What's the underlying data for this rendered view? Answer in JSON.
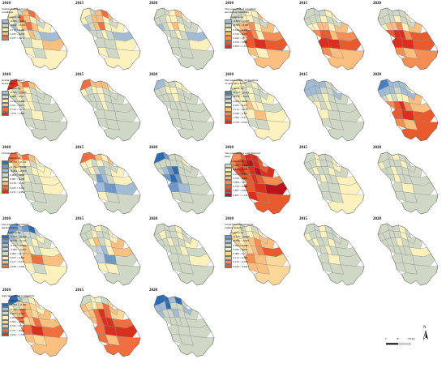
{
  "panels": [
    {
      "year": "2010",
      "title": "Transportation and road conditions",
      "central": "Central city",
      "legend": [
        "-0.045 ~ -0.011",
        "-0.010 ~ 0.116",
        "0.117 ~ 0.182",
        "0.183 ~ 0.256",
        "0.257 ~ 0.432"
      ],
      "colors": [
        "#a3bcd5",
        "#cfd7c5",
        "#fdf1bd",
        "#fbbf80",
        "#f16e3f"
      ],
      "pattern": [
        2,
        1,
        3,
        4,
        3,
        2,
        1,
        4,
        3,
        2,
        1,
        0,
        2,
        3,
        4,
        3,
        2,
        1,
        2,
        3,
        1,
        0,
        1,
        2,
        3,
        2,
        1,
        2
      ]
    },
    {
      "year": "2015",
      "title": "",
      "central": "",
      "legend": [],
      "colors": [
        "#a3bcd5",
        "#cfd7c5",
        "#fdf1bd",
        "#fbbf80",
        "#f16e3f"
      ],
      "pattern": [
        2,
        1,
        3,
        4,
        3,
        2,
        1,
        3,
        3,
        2,
        1,
        0,
        1,
        3,
        4,
        2,
        2,
        1,
        1,
        2,
        1,
        0,
        1,
        1,
        2,
        2,
        1,
        2
      ]
    },
    {
      "year": "2020",
      "title": "",
      "central": "",
      "legend": [],
      "colors": [
        "#a3bcd5",
        "#cfd7c5",
        "#fdf1bd",
        "#fbbf80",
        "#f16e3f"
      ],
      "pattern": [
        1,
        1,
        2,
        3,
        2,
        1,
        1,
        2,
        2,
        1,
        1,
        0,
        1,
        2,
        3,
        2,
        1,
        1,
        1,
        2,
        1,
        0,
        1,
        1,
        2,
        1,
        1,
        1
      ]
    },
    {
      "year": "2010",
      "title": "The proportion of secondary and tertiary industries",
      "central": "Central city",
      "legend": [
        "-0.024 ~ -0.003",
        "-0.003 ~ 0.185",
        "0.186 ~ 0.318",
        "0.319 ~ 0.455",
        "0.456 ~ 0.575",
        "0.576 ~ 0.852",
        "0.853 ~ 1.315"
      ],
      "colors": [
        "#a3bcd5",
        "#cfd7c5",
        "#fdf1bd",
        "#fbbf80",
        "#f58e55",
        "#ea5a2f",
        "#d92f1f"
      ],
      "pattern": [
        1,
        1,
        2,
        2,
        3,
        1,
        1,
        2,
        2,
        1,
        1,
        2,
        3,
        3,
        4,
        2,
        3,
        4,
        5,
        4,
        2,
        4,
        5,
        6,
        5,
        3,
        2,
        3
      ]
    },
    {
      "year": "2015",
      "title": "",
      "central": "",
      "legend": [],
      "colors": [
        "#a3bcd5",
        "#cfd7c5",
        "#fdf1bd",
        "#fbbf80",
        "#f58e55",
        "#ea5a2f",
        "#d92f1f"
      ],
      "pattern": [
        1,
        1,
        1,
        2,
        2,
        1,
        1,
        1,
        2,
        1,
        1,
        2,
        2,
        3,
        3,
        2,
        3,
        4,
        5,
        5,
        3,
        4,
        6,
        6,
        5,
        4,
        3,
        3
      ]
    },
    {
      "year": "2020",
      "title": "",
      "central": "",
      "legend": [],
      "colors": [
        "#a3bcd5",
        "#cfd7c5",
        "#fdf1bd",
        "#fbbf80",
        "#f58e55",
        "#ea5a2f",
        "#d92f1f"
      ],
      "pattern": [
        1,
        1,
        1,
        1,
        2,
        1,
        1,
        1,
        2,
        1,
        1,
        2,
        3,
        3,
        4,
        2,
        3,
        5,
        6,
        6,
        4,
        5,
        6,
        6,
        5,
        4,
        3,
        4
      ]
    },
    {
      "year": "2010",
      "title": "Arable land resource endowment",
      "central": "Central city",
      "legend": [
        "-0.535 ~ -0.009",
        "0.000 ~ 0.211",
        "0.212 ~ 0.320",
        "0.321 ~ 0.517",
        "0.519 ~ 1.278",
        "1.279 ~ 2.426"
      ],
      "colors": [
        "#a3bcd5",
        "#cfd7c5",
        "#fdf1bd",
        "#fbbf80",
        "#f16e3f",
        "#d92f1f"
      ],
      "pattern": [
        5,
        3,
        4,
        3,
        2,
        2,
        1,
        3,
        2,
        1,
        1,
        1,
        2,
        1,
        2,
        1,
        1,
        1,
        2,
        2,
        1,
        1,
        1,
        2,
        1,
        1,
        1,
        1
      ]
    },
    {
      "year": "2015",
      "title": "",
      "central": "",
      "legend": [],
      "colors": [
        "#a3bcd5",
        "#cfd7c5",
        "#fdf1bd",
        "#fbbf80",
        "#f16e3f",
        "#d92f1f"
      ],
      "pattern": [
        4,
        3,
        3,
        3,
        2,
        2,
        1,
        2,
        2,
        1,
        1,
        1,
        1,
        1,
        2,
        1,
        1,
        1,
        1,
        2,
        1,
        1,
        1,
        1,
        1,
        1,
        1,
        1
      ]
    },
    {
      "year": "2020",
      "title": "",
      "central": "",
      "legend": [],
      "colors": [
        "#a3bcd5",
        "#cfd7c5",
        "#fdf1bd",
        "#fbbf80",
        "#f16e3f",
        "#d92f1f"
      ],
      "pattern": [
        0,
        1,
        1,
        2,
        2,
        1,
        1,
        2,
        2,
        1,
        1,
        1,
        1,
        1,
        2,
        1,
        1,
        1,
        1,
        1,
        1,
        1,
        1,
        1,
        1,
        1,
        1,
        1
      ]
    },
    {
      "year": "2010",
      "title": "The non-farming development of rural labor force",
      "central": "Central city",
      "legend": [
        "-0.124 ~ -0.121",
        "-0.120 ~ -0.001",
        "0.000 ~ 0.078",
        "0.079 ~ 0.171",
        "0.172 ~ 0.247",
        "0.248 ~ 0.301",
        "0.302 ~ 0.377",
        "0.378 ~ 0.563"
      ],
      "colors": [
        "#4a7fbf",
        "#a3bcd5",
        "#cfd7c5",
        "#fdf1bd",
        "#fbbf80",
        "#f58e55",
        "#ea5a2f",
        "#d92f1f"
      ],
      "pattern": [
        3,
        3,
        2,
        3,
        2,
        2,
        3,
        2,
        3,
        2,
        2,
        3,
        3,
        2,
        3,
        2,
        3,
        3,
        4,
        3,
        3,
        2,
        3,
        4,
        3,
        2,
        2,
        3
      ]
    },
    {
      "year": "2015",
      "title": "",
      "central": "",
      "legend": [],
      "colors": [
        "#4a7fbf",
        "#a3bcd5",
        "#cfd7c5",
        "#fdf1bd",
        "#fbbf80",
        "#f58e55",
        "#ea5a2f",
        "#d92f1f"
      ],
      "pattern": [
        1,
        1,
        1,
        2,
        2,
        1,
        1,
        1,
        2,
        2,
        1,
        2,
        2,
        2,
        3,
        2,
        2,
        3,
        2,
        3,
        2,
        2,
        3,
        2,
        2,
        2,
        2,
        2
      ]
    },
    {
      "year": "2020",
      "title": "",
      "central": "",
      "legend": [],
      "colors": [
        "#4a7fbf",
        "#a3bcd5",
        "#cfd7c5",
        "#fdf1bd",
        "#fbbf80",
        "#f58e55",
        "#ea5a2f",
        "#d92f1f"
      ],
      "pattern": [
        0,
        1,
        1,
        1,
        2,
        1,
        1,
        1,
        2,
        1,
        1,
        2,
        3,
        2,
        3,
        3,
        4,
        5,
        6,
        7,
        5,
        4,
        6,
        7,
        6,
        5,
        4,
        6
      ]
    },
    {
      "year": "2010",
      "title": "Urbanization",
      "central": "Central city",
      "legend": [
        "-0.758 ~ -0.132",
        "-0.131 ~ -0.094",
        "-0.093 ~ -0.001",
        "0.000 ~ 0.066",
        "0.067 ~ 0.138",
        "0.139 ~ 0.182",
        "0.183 ~ 0.210",
        "0.211 ~ 0.484"
      ],
      "colors": [
        "#2c6bb0",
        "#6d98c8",
        "#a3bcd5",
        "#cfd7c5",
        "#fdf1bd",
        "#fbbf80",
        "#f16e3f",
        "#d92f1f"
      ],
      "pattern": [
        6,
        5,
        6,
        5,
        4,
        4,
        5,
        4,
        4,
        3,
        4,
        3,
        4,
        3,
        3,
        4,
        4,
        3,
        4,
        3,
        3,
        4,
        3,
        3,
        4,
        3,
        3,
        3
      ]
    },
    {
      "year": "2015",
      "title": "",
      "central": "",
      "legend": [],
      "colors": [
        "#2c6bb0",
        "#6d98c8",
        "#a3bcd5",
        "#cfd7c5",
        "#fdf1bd",
        "#fbbf80",
        "#f16e3f",
        "#d92f1f"
      ],
      "pattern": [
        6,
        6,
        5,
        4,
        5,
        4,
        4,
        3,
        4,
        3,
        3,
        3,
        4,
        3,
        2,
        3,
        4,
        3,
        1,
        2,
        3,
        4,
        2,
        1,
        2,
        4,
        3,
        3
      ]
    },
    {
      "year": "2020",
      "title": "",
      "central": "",
      "legend": [],
      "colors": [
        "#2c6bb0",
        "#6d98c8",
        "#a3bcd5",
        "#cfd7c5",
        "#fdf1bd",
        "#fbbf80",
        "#f16e3f",
        "#d92f1f"
      ],
      "pattern": [
        0,
        1,
        3,
        3,
        4,
        3,
        3,
        3,
        3,
        3,
        3,
        3,
        2,
        1,
        0,
        3,
        3,
        1,
        0,
        1,
        3,
        3,
        1,
        2,
        3,
        3,
        3,
        3
      ]
    },
    {
      "year": "2010",
      "title": "The government's total financial input",
      "central": "Central city",
      "legend": [
        "0.000 ~ 0.143",
        "0.144 ~ 0.253",
        "0.254 ~ 0.322",
        "0.323 ~ 0.403",
        "0.404 ~ 0.518",
        "0.519 ~ 0.666",
        "0.667 ~ 0.926",
        "0.927 ~ 1.134"
      ],
      "colors": [
        "#cfd7c5",
        "#fdf1bd",
        "#fbd89a",
        "#fbbf80",
        "#f58e55",
        "#ea5a2f",
        "#d92f1f",
        "#b8141a"
      ],
      "pattern": [
        4,
        5,
        6,
        6,
        5,
        4,
        5,
        6,
        7,
        6,
        5,
        5,
        6,
        5,
        6,
        7,
        6,
        5,
        5,
        6,
        5,
        4,
        5,
        6,
        7,
        6,
        5,
        5
      ]
    },
    {
      "year": "2015",
      "title": "",
      "central": "",
      "legend": [],
      "colors": [
        "#cfd7c5",
        "#fdf1bd",
        "#fbd89a",
        "#fbbf80",
        "#f58e55",
        "#ea5a2f",
        "#d92f1f",
        "#b8141a"
      ],
      "pattern": [
        0,
        1,
        0,
        0,
        1,
        0,
        0,
        1,
        0,
        0,
        1,
        0,
        1,
        0,
        0,
        1,
        0,
        0,
        1,
        0,
        0,
        1,
        0,
        0,
        1,
        0,
        0,
        1
      ]
    },
    {
      "year": "2020",
      "title": "",
      "central": "",
      "legend": [],
      "colors": [
        "#cfd7c5",
        "#fdf1bd",
        "#fbd89a",
        "#fbbf80",
        "#f58e55",
        "#ea5a2f",
        "#d92f1f",
        "#b8141a"
      ],
      "pattern": [
        0,
        0,
        1,
        0,
        0,
        1,
        0,
        0,
        0,
        1,
        0,
        0,
        0,
        1,
        0,
        0,
        0,
        0,
        1,
        0,
        0,
        0,
        0,
        1,
        0,
        0,
        0,
        0
      ]
    },
    {
      "year": "2010",
      "title": "The level of agricultural mechanization",
      "central": "Central city",
      "legend": [
        "-0.242 ~ -0.199",
        "-0.198 ~ -0.132",
        "-0.131 ~ -0.066",
        "-0.065 ~ -0.001",
        "0.000 ~ 0.074",
        "0.075 ~ 0.156",
        "0.157 ~ 0.237",
        "0.238 ~ 0.424"
      ],
      "colors": [
        "#2c6bb0",
        "#6d98c8",
        "#a3bcd5",
        "#c2d1dc",
        "#cfd7c5",
        "#fdf1bd",
        "#fbbf80",
        "#f16e3f"
      ],
      "pattern": [
        1,
        2,
        1,
        0,
        3,
        2,
        4,
        3,
        4,
        4,
        5,
        4,
        4,
        5,
        4,
        5,
        4,
        5,
        6,
        5,
        4,
        5,
        6,
        7,
        6,
        5,
        4,
        5
      ]
    },
    {
      "year": "2015",
      "title": "",
      "central": "",
      "legend": [],
      "colors": [
        "#2c6bb0",
        "#6d98c8",
        "#a3bcd5",
        "#c2d1dc",
        "#cfd7c5",
        "#fdf1bd",
        "#fbbf80",
        "#f16e3f"
      ],
      "pattern": [
        4,
        4,
        5,
        4,
        5,
        4,
        4,
        5,
        4,
        4,
        5,
        4,
        5,
        6,
        4,
        5,
        6,
        4,
        3,
        2,
        5,
        6,
        3,
        1,
        4,
        5,
        5,
        4
      ]
    },
    {
      "year": "2020",
      "title": "",
      "central": "",
      "legend": [],
      "colors": [
        "#2c6bb0",
        "#6d98c8",
        "#a3bcd5",
        "#c2d1dc",
        "#cfd7c5",
        "#fdf1bd",
        "#fbbf80",
        "#f16e3f"
      ],
      "pattern": [
        4,
        4,
        4,
        5,
        4,
        4,
        5,
        4,
        4,
        5,
        4,
        4,
        4,
        5,
        4,
        4,
        5,
        4,
        4,
        4,
        5,
        4,
        4,
        4,
        5,
        4,
        4,
        4
      ]
    },
    {
      "year": "2010",
      "title": "Social fixed investment in primary industry",
      "central": "Central city",
      "legend": [
        "-0.140 ~ -0.060",
        "-0.059 ~ -0.001",
        "0.000 ~ 0.038",
        "0.039 ~ 0.079",
        "0.080 ~ 0.111",
        "0.112 ~ 0.155",
        "0.156 ~ 0.228",
        "0.229 ~ 0.446"
      ],
      "colors": [
        "#6d98c8",
        "#a3bcd5",
        "#cfd7c5",
        "#fdf1bd",
        "#fbd89a",
        "#fbbf80",
        "#f58e55",
        "#ea5a2f"
      ],
      "pattern": [
        3,
        2,
        3,
        2,
        3,
        4,
        3,
        2,
        3,
        4,
        5,
        4,
        3,
        4,
        5,
        6,
        5,
        4,
        4,
        5,
        6,
        7,
        6,
        5,
        4,
        5,
        5,
        4
      ]
    },
    {
      "year": "2015",
      "title": "",
      "central": "",
      "legend": [],
      "colors": [
        "#6d98c8",
        "#a3bcd5",
        "#cfd7c5",
        "#fdf1bd",
        "#fbd89a",
        "#fbbf80",
        "#f58e55",
        "#ea5a2f"
      ],
      "pattern": [
        2,
        2,
        3,
        2,
        2,
        3,
        2,
        2,
        3,
        2,
        2,
        2,
        3,
        2,
        2,
        3,
        2,
        2,
        2,
        3,
        2,
        2,
        2,
        3,
        2,
        2,
        2,
        2
      ]
    },
    {
      "year": "2020",
      "title": "",
      "central": "",
      "legend": [],
      "colors": [
        "#6d98c8",
        "#a3bcd5",
        "#cfd7c5",
        "#fdf1bd",
        "#fbd89a",
        "#fbbf80",
        "#f58e55",
        "#ea5a2f"
      ],
      "pattern": [
        2,
        2,
        2,
        3,
        2,
        2,
        2,
        2,
        2,
        3,
        2,
        2,
        2,
        2,
        3,
        2,
        2,
        2,
        2,
        2,
        2,
        3,
        2,
        2,
        2,
        2,
        2,
        2
      ]
    },
    {
      "year": "2010",
      "title": "Agricultural land productivity",
      "central": "Central city",
      "legend": [
        "-0.503 ~ -0.182",
        "-0.181 ~ -0.001",
        "0.000 ~ 0.204",
        "0.205 ~ 0.364",
        "0.365 ~ 0.521",
        "0.522 ~ 0.746",
        "0.747 ~ 0.923",
        "0.924 ~ 1.338"
      ],
      "colors": [
        "#2c6bb0",
        "#a3bcd5",
        "#cfd7c5",
        "#fdf1bd",
        "#fbd89a",
        "#fbbf80",
        "#f16e3f",
        "#d92f1f"
      ],
      "pattern": [
        0,
        1,
        2,
        3,
        4,
        3,
        2,
        4,
        5,
        4,
        3,
        4,
        5,
        6,
        5,
        4,
        5,
        6,
        4,
        5,
        6,
        5,
        6,
        7,
        6,
        5,
        4,
        5
      ]
    },
    {
      "year": "2015",
      "title": "",
      "central": "",
      "legend": [],
      "colors": [
        "#2c6bb0",
        "#a3bcd5",
        "#cfd7c5",
        "#fdf1bd",
        "#fbd89a",
        "#fbbf80",
        "#f16e3f",
        "#d92f1f"
      ],
      "pattern": [
        2,
        3,
        3,
        2,
        4,
        5,
        4,
        3,
        5,
        6,
        5,
        4,
        5,
        6,
        7,
        6,
        4,
        5,
        6,
        7,
        7,
        6,
        6,
        7,
        7,
        6,
        5,
        6
      ]
    },
    {
      "year": "2020",
      "title": "",
      "central": "",
      "legend": [],
      "colors": [
        "#2c6bb0",
        "#a3bcd5",
        "#cfd7c5",
        "#fdf1bd",
        "#fbd89a",
        "#fbbf80",
        "#f16e3f",
        "#d92f1f"
      ],
      "pattern": [
        0,
        0,
        1,
        0,
        2,
        1,
        1,
        0,
        2,
        2,
        1,
        1,
        2,
        2,
        1,
        2,
        2,
        2,
        2,
        2,
        2,
        2,
        2,
        2,
        2,
        2,
        2,
        2
      ]
    }
  ],
  "scalebar": {
    "labels": [
      "0",
      "50",
      "100 km"
    ]
  },
  "north": {
    "label": "N"
  }
}
